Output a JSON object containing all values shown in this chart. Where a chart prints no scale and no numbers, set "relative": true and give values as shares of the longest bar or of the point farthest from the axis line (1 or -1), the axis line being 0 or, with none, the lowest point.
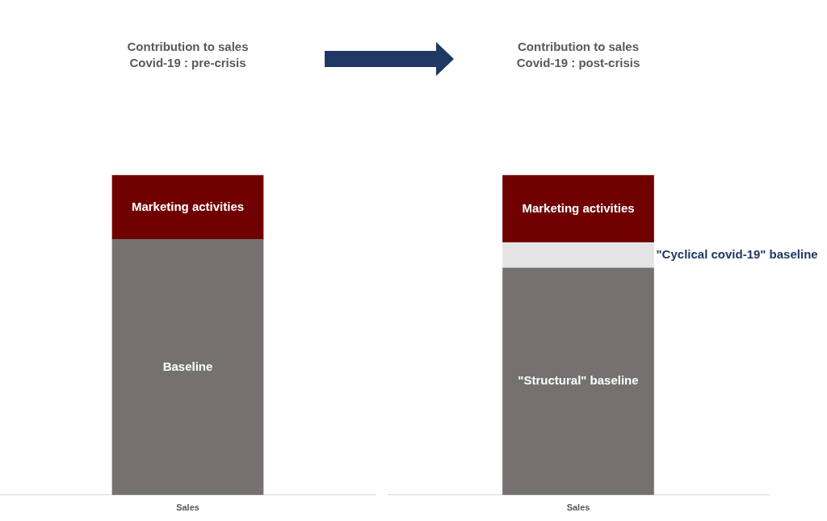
{
  "chart_data": [
    {
      "type": "bar",
      "title": "Contribution to sales",
      "subtitle": "Covid-19 : pre-crisis",
      "xlabel": "Sales",
      "categories": [
        null
      ],
      "stacked": true,
      "relative": true,
      "legend": false,
      "grid": false,
      "series": [
        {
          "name": "Baseline",
          "color": "#767171",
          "values": [
            0.8
          ]
        },
        {
          "name": "Marketing activities",
          "color": "#700000",
          "values": [
            0.2
          ]
        }
      ]
    },
    {
      "type": "bar",
      "title": "Contribution to sales",
      "subtitle": "Covid-19 : post-crisis",
      "xlabel": "Sales",
      "categories": [
        null
      ],
      "stacked": true,
      "relative": true,
      "legend": false,
      "grid": false,
      "series": [
        {
          "name": "\"Structural\" baseline",
          "color": "#767171",
          "values": [
            0.71
          ]
        },
        {
          "name": "\"Cyclical covid-19\" baseline",
          "color": "#e4e4e4",
          "values": [
            0.08
          ]
        },
        {
          "name": "Marketing activities",
          "color": "#700000",
          "values": [
            0.21
          ]
        }
      ]
    }
  ]
}
